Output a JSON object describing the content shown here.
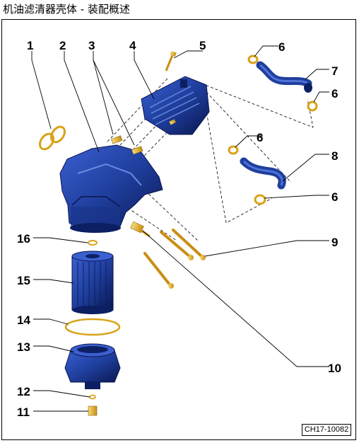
{
  "title": "机油滤清器壳体 - 装配概述",
  "figure_code": "CH17-10082",
  "callouts": [
    "1",
    "2",
    "3",
    "4",
    "5",
    "6",
    "6",
    "6",
    "6",
    "7",
    "8",
    "9",
    "10",
    "11",
    "12",
    "13",
    "14",
    "15",
    "16"
  ],
  "colors": {
    "part_blue": "#1f3f9e",
    "part_dark": "#0d1f63",
    "brass": "#d9a21a",
    "brass_light": "#f2cf5a",
    "line": "#000000"
  }
}
